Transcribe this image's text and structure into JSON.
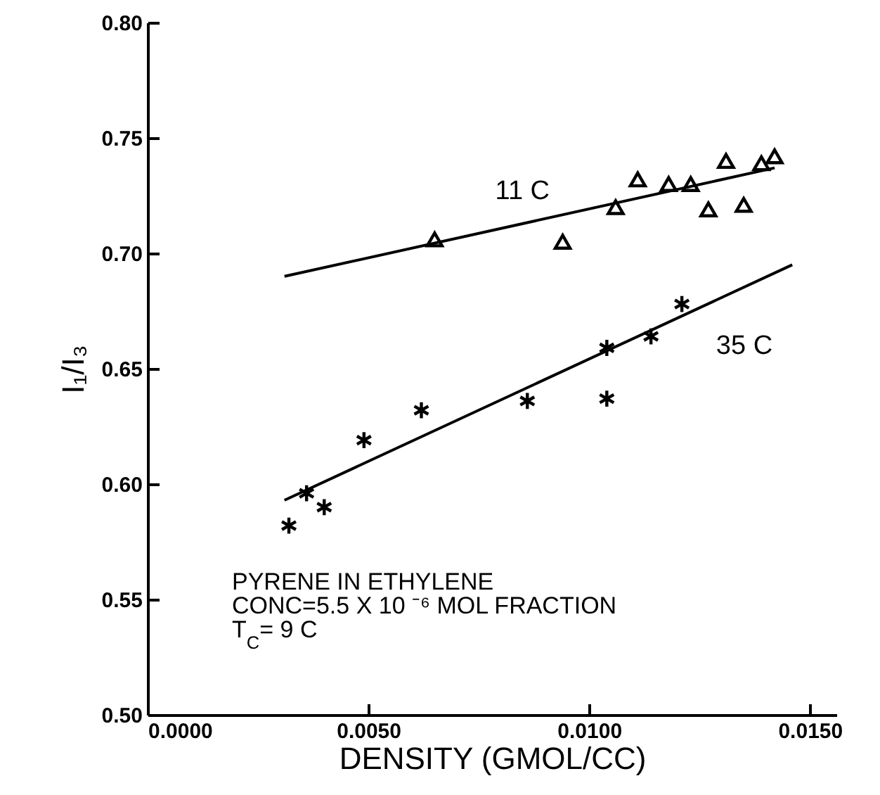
{
  "chart_data": {
    "type": "scatter",
    "xlabel": "DENSITY (GMOL/CC)",
    "ylabel": "I₁/I₃",
    "xlim": [
      0,
      0.0156
    ],
    "ylim": [
      0.5,
      0.8
    ],
    "xticks": [
      {
        "value": 0,
        "label": "0.0000"
      },
      {
        "value": 0.005,
        "label": "0.0050"
      },
      {
        "value": 0.01,
        "label": "0.0100"
      },
      {
        "value": 0.015,
        "label": "0.0150"
      }
    ],
    "yticks": [
      {
        "value": 0.5,
        "label": "0.50"
      },
      {
        "value": 0.55,
        "label": "0.55"
      },
      {
        "value": 0.6,
        "label": "0.60"
      },
      {
        "value": 0.65,
        "label": "0.65"
      },
      {
        "value": 0.7,
        "label": "0.70"
      },
      {
        "value": 0.75,
        "label": "0.75"
      },
      {
        "value": 0.8,
        "label": "0.80"
      }
    ],
    "grid": false,
    "series": [
      {
        "type": "scatter",
        "marker": "triangle",
        "color": "#000000",
        "x": [
          0.0065,
          0.0094,
          0.0106,
          0.0111,
          0.0118,
          0.0123,
          0.0127,
          0.0131,
          0.0135,
          0.0139,
          0.0142
        ],
        "values": [
          0.706,
          0.705,
          0.72,
          0.732,
          0.73,
          0.73,
          0.719,
          0.74,
          0.721,
          0.739,
          0.742
        ]
      },
      {
        "type": "scatter",
        "marker": "cross",
        "color": "#000000",
        "x": [
          0.0032,
          0.0036,
          0.004,
          0.0049,
          0.0062,
          0.0086,
          0.0104,
          0.0104,
          0.0114,
          0.0121
        ],
        "values": [
          0.582,
          0.596,
          0.59,
          0.619,
          0.632,
          0.636,
          0.659,
          0.637,
          0.664,
          0.678
        ]
      },
      {
        "type": "line",
        "name": "11 C",
        "color": "#000000",
        "x": [
          0.0031,
          0.0142
        ],
        "values": [
          0.69,
          0.737
        ]
      },
      {
        "type": "line",
        "name": "35 C",
        "color": "#000000",
        "x": [
          0.0031,
          0.0146
        ],
        "values": [
          0.593,
          0.695
        ]
      }
    ],
    "annotations": [
      "PYRENE IN ETHYLENE",
      "CONC=5.5 X 10 ⁻⁶  MOL FRACTION",
      "T$_{C}$= 9 C"
    ]
  }
}
